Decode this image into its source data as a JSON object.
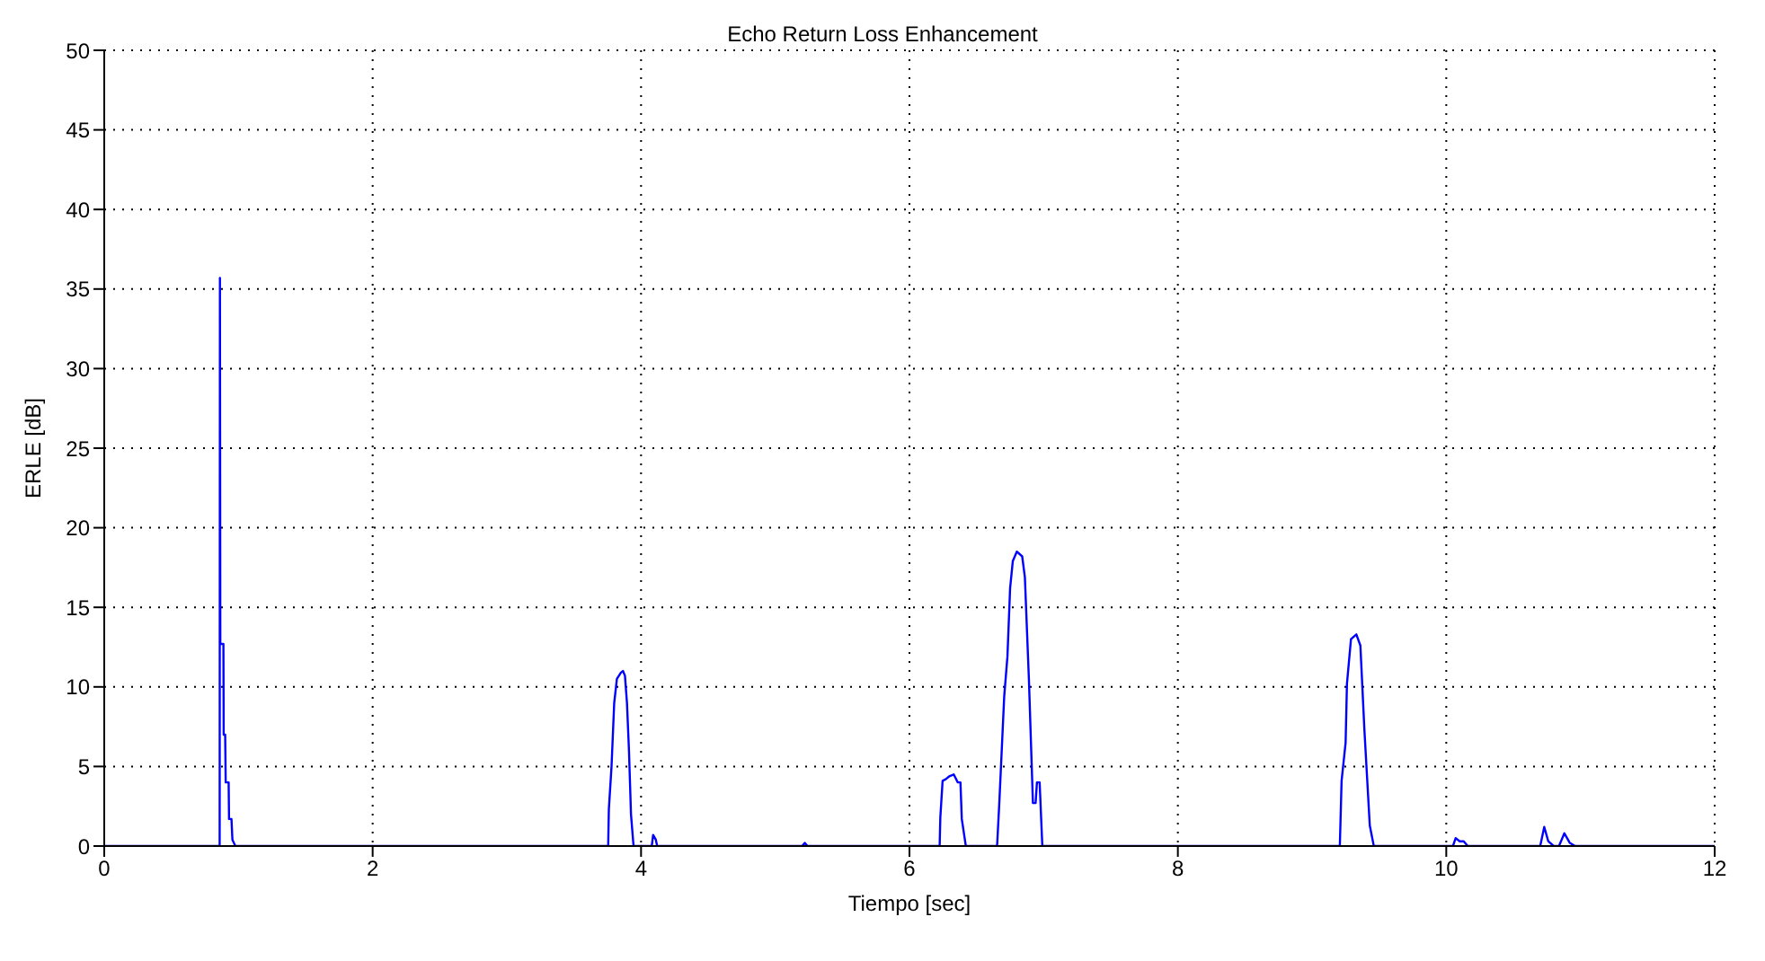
{
  "chart_data": {
    "type": "line",
    "title": "Echo Return Loss Enhancement",
    "xlabel": "Tiempo [sec]",
    "ylabel": "ERLE [dB]",
    "x": [
      0,
      0.86,
      0.862,
      0.865,
      0.888,
      0.89,
      0.901,
      0.905,
      0.927,
      0.93,
      0.948,
      0.955,
      0.977,
      3.755,
      3.76,
      3.78,
      3.8,
      3.82,
      3.85,
      3.865,
      3.88,
      3.895,
      3.91,
      3.925,
      3.944,
      4.08,
      4.09,
      4.11,
      4.12,
      5.2,
      5.22,
      5.24,
      6.225,
      6.23,
      6.247,
      6.27,
      6.3,
      6.33,
      6.36,
      6.38,
      6.39,
      6.42,
      6.653,
      6.67,
      6.706,
      6.73,
      6.75,
      6.77,
      6.8,
      6.84,
      6.86,
      6.89,
      6.92,
      6.94,
      6.95,
      6.97,
      6.99,
      9.207,
      9.22,
      9.25,
      9.26,
      9.29,
      9.33,
      9.36,
      9.39,
      9.43,
      9.46,
      10.05,
      10.07,
      10.1,
      10.13,
      10.16,
      10.7,
      10.73,
      10.76,
      10.8,
      10.84,
      10.88,
      10.92,
      10.96,
      12
    ],
    "series": [
      {
        "color": "#0000ff",
        "values": [
          0,
          0,
          35.7,
          12.7,
          12.7,
          7.0,
          7.0,
          4.0,
          4.0,
          1.7,
          1.7,
          0.4,
          0,
          0,
          2.3,
          5,
          9,
          10.5,
          10.9,
          11.0,
          10.7,
          9,
          6,
          2,
          0,
          0,
          0.7,
          0.4,
          0,
          0,
          0.2,
          0,
          0,
          1.8,
          4.1,
          4.2,
          4.4,
          4.5,
          4.0,
          4.0,
          1.7,
          0,
          0,
          2.8,
          9.4,
          11.9,
          16.2,
          17.9,
          18.5,
          18.2,
          16.9,
          10.5,
          2.7,
          2.7,
          4.0,
          4.0,
          0,
          0,
          4.1,
          6.5,
          10.2,
          13.0,
          13.3,
          12.6,
          7.3,
          1.3,
          0,
          0,
          0.5,
          0.3,
          0.3,
          0,
          0,
          1.2,
          0.3,
          0,
          0,
          0.8,
          0.2,
          0,
          0
        ]
      }
    ],
    "xlim": [
      0,
      12
    ],
    "xticks": [
      0,
      2,
      4,
      6,
      8,
      10,
      12
    ],
    "ylim": [
      0,
      50
    ],
    "yticks": [
      0,
      5,
      10,
      15,
      20,
      25,
      30,
      35,
      40,
      45,
      50
    ],
    "grid": true,
    "marker": "none",
    "line_style": "solid"
  }
}
